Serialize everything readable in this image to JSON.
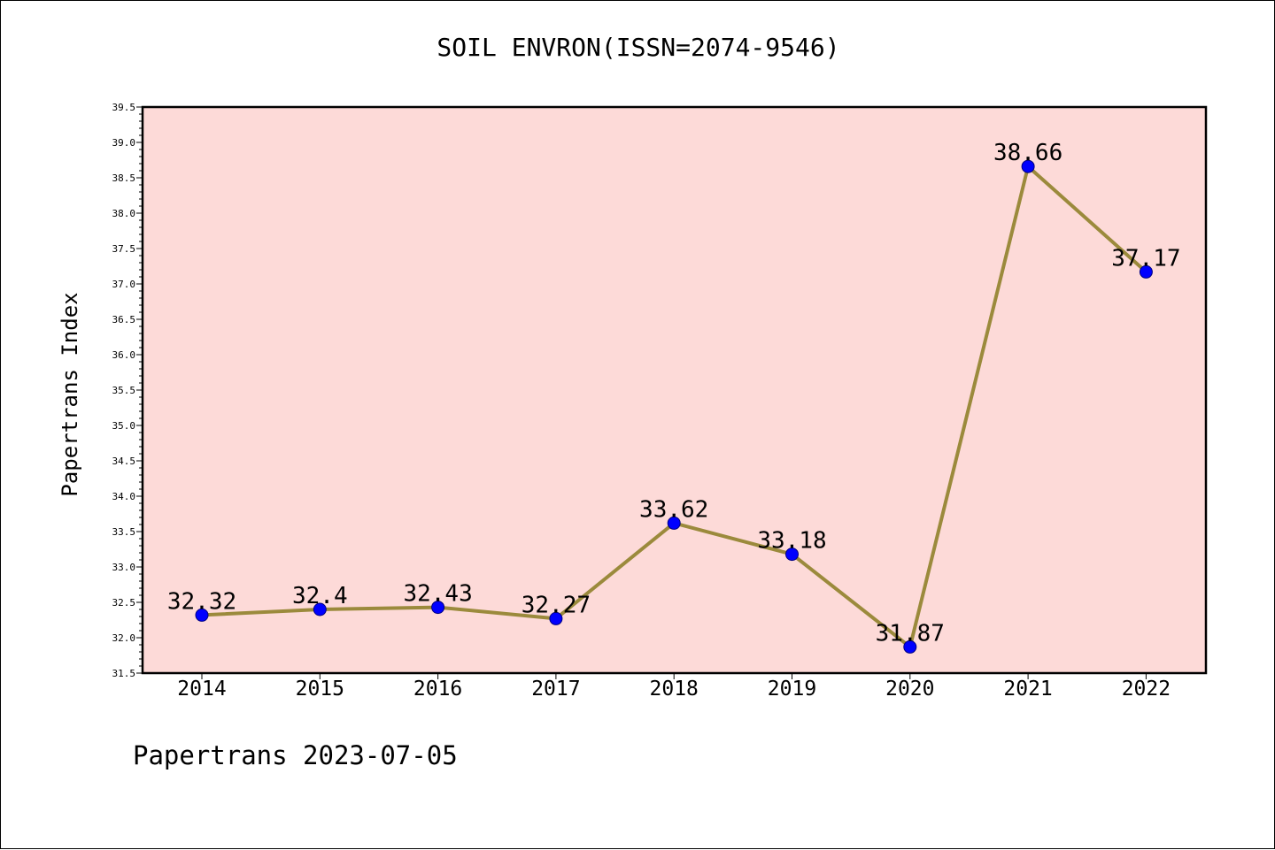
{
  "chart_data": {
    "type": "line",
    "title": "SOIL ENVRON(ISSN=2074-9546)",
    "xlabel": "",
    "ylabel": "Papertrans Index",
    "categories": [
      "2014",
      "2015",
      "2016",
      "2017",
      "2018",
      "2019",
      "2020",
      "2021",
      "2022"
    ],
    "series": [
      {
        "values": [
          32.32,
          32.4,
          32.43,
          32.27,
          33.62,
          33.18,
          31.87,
          38.66,
          37.17
        ],
        "data_labels": [
          "32.32",
          "32.4",
          "32.43",
          "32.27",
          "33.62",
          "33.18",
          "31.87",
          "38.66",
          "37.17"
        ]
      }
    ],
    "ylim": [
      31.5,
      39.5
    ],
    "y_ticks": [
      "31.5",
      "32.0",
      "32.5",
      "33.0",
      "33.5",
      "34.0",
      "34.5",
      "35.0",
      "35.5",
      "36.0",
      "36.5",
      "37.0",
      "37.5",
      "38.0",
      "38.5",
      "39.0",
      "39.5"
    ],
    "grid": false,
    "colors": {
      "plot_background": "#fddad8",
      "line": "#9b8a3c",
      "marker": "#0000ff",
      "marker_edge": "#000080"
    }
  },
  "footer": "Papertrans 2023-07-05"
}
